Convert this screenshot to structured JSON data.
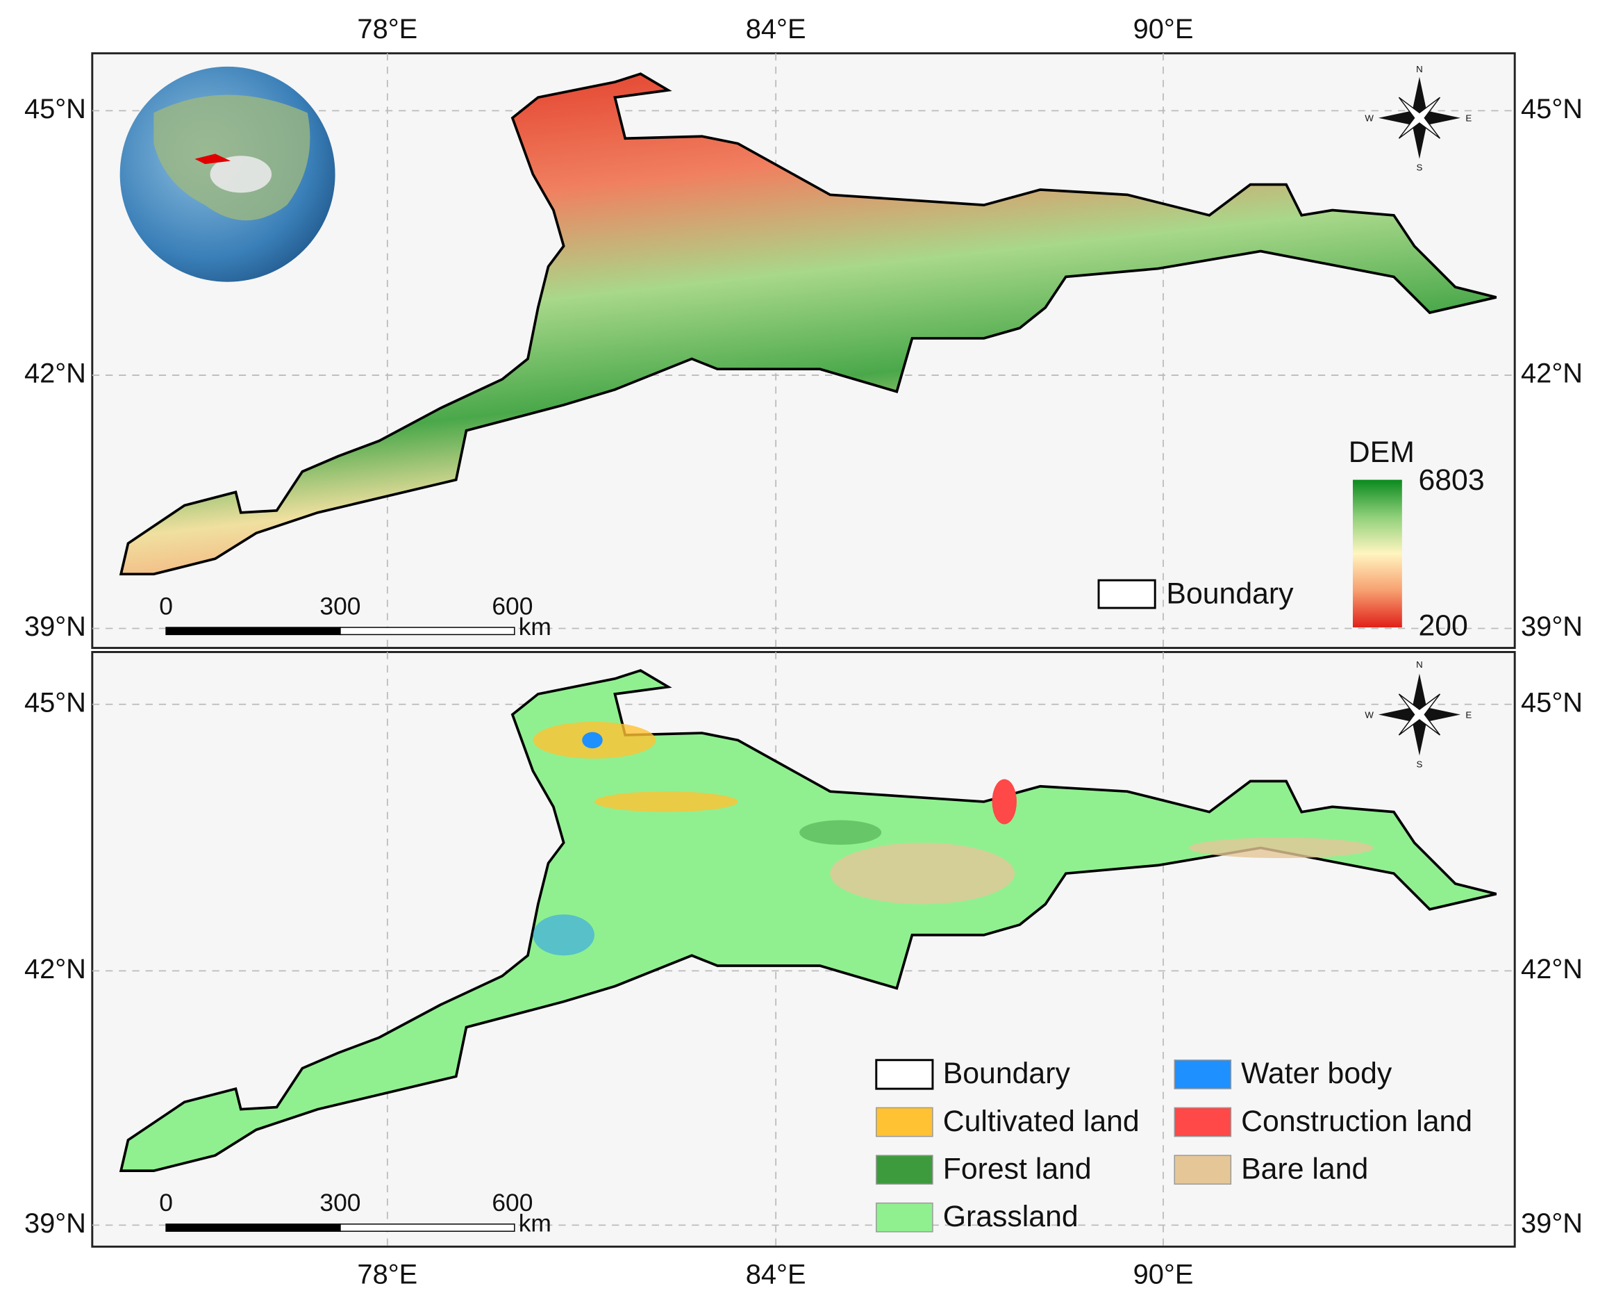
{
  "top_map": {
    "lon_labels": [
      "78°E",
      "84°E",
      "90°E"
    ],
    "lat_labels": [
      "45°N",
      "42°N",
      "39°N"
    ],
    "legend": {
      "items": [
        {
          "label": "Boundary",
          "color": "#ffffff"
        }
      ]
    },
    "dem_legend": {
      "title": "DEM",
      "max": 6803,
      "min": 200
    },
    "scale_bar": {
      "ticks": [
        0,
        300,
        600
      ],
      "unit": "km"
    },
    "compass": {
      "n": "N",
      "e": "E",
      "s": "S",
      "w": "W"
    }
  },
  "bottom_map": {
    "lon_labels": [
      "78°E",
      "84°E",
      "90°E"
    ],
    "lat_labels": [
      "45°N",
      "42°N",
      "39°N"
    ],
    "legend": {
      "items": [
        {
          "label": "Boundary",
          "color": "#ffffff"
        },
        {
          "label": "Cultivated land",
          "color": "#ffc233"
        },
        {
          "label": "Forest land",
          "color": "#3d9b3d"
        },
        {
          "label": "Grassland",
          "color": "#90f090"
        },
        {
          "label": "Water body",
          "color": "#1e90ff"
        },
        {
          "label": "Construction land",
          "color": "#ff4848"
        },
        {
          "label": "Bare land",
          "color": "#e5c797"
        }
      ]
    },
    "scale_bar": {
      "ticks": [
        0,
        300,
        600
      ],
      "unit": "km"
    },
    "compass": {
      "n": "N",
      "e": "E",
      "s": "S",
      "w": "W"
    }
  }
}
